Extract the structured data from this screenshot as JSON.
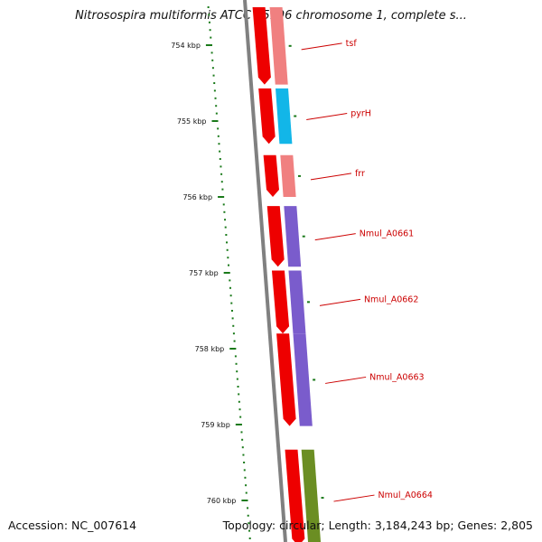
{
  "header": {
    "title": "Nitrosospira multiformis ATCC 25196 chromosome 1, complete s..."
  },
  "footer": {
    "accession": "Accession: NC_007614",
    "summary": "Topology: circular; Length: 3,184,243 bp; Genes: 2,805"
  },
  "scale_ticks": [
    {
      "kbp": 754,
      "label": "754 kbp"
    },
    {
      "kbp": 755,
      "label": "755 kbp"
    },
    {
      "kbp": 756,
      "label": "756 kbp"
    },
    {
      "kbp": 757,
      "label": "757 kbp"
    },
    {
      "kbp": 758,
      "label": "758 kbp"
    },
    {
      "kbp": 759,
      "label": "759 kbp"
    },
    {
      "kbp": 760,
      "label": "760 kbp"
    }
  ],
  "genes": [
    {
      "name": "tsf",
      "start_kbp": 753.5,
      "end_kbp": 754.52,
      "color": "#f08080"
    },
    {
      "name": "pyrH",
      "start_kbp": 754.57,
      "end_kbp": 755.3,
      "color": "#12b6e8"
    },
    {
      "name": "frr",
      "start_kbp": 755.45,
      "end_kbp": 756.0,
      "color": "#f08080"
    },
    {
      "name": "Nmul_A0661",
      "start_kbp": 756.12,
      "end_kbp": 756.92,
      "color": "#7a5ccc"
    },
    {
      "name": "Nmul_A0662",
      "start_kbp": 756.97,
      "end_kbp": 757.8,
      "color": "#7a5ccc"
    },
    {
      "name": "Nmul_A0663",
      "start_kbp": 757.8,
      "end_kbp": 759.02,
      "color": "#7a5ccc"
    },
    {
      "name": "Nmul_A0664",
      "start_kbp": 759.33,
      "end_kbp": 760.6,
      "color": "#6b8e23"
    }
  ],
  "colors": {
    "backbone": "#808080",
    "cds_arrow": "#ee0000",
    "ticks": "#1a7a1a",
    "label_text": "#cc0000"
  }
}
